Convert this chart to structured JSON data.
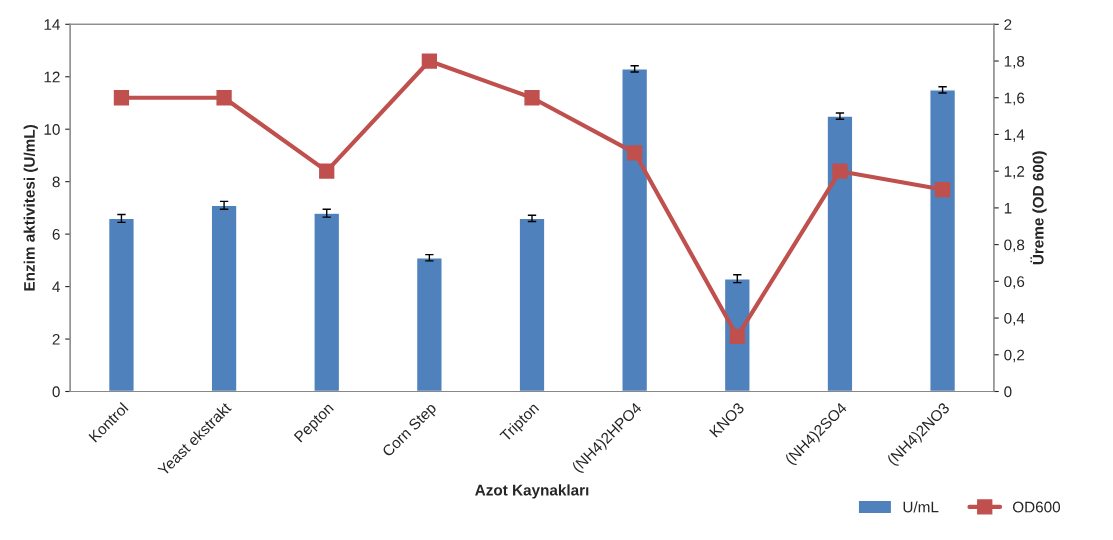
{
  "chart_data": {
    "type": "bar",
    "categories": [
      "Kontrol",
      "Yeast ekstrakt",
      "Pepton",
      "Corn Step",
      "Tripton",
      "(NH4)2HPO4",
      "KNO3",
      "(NH4)2SO4",
      "(NH4)2NO3"
    ],
    "series": [
      {
        "name": "U/mL",
        "color": "#4f81bd",
        "values": [
          6.6,
          7.1,
          6.8,
          5.1,
          6.6,
          12.3,
          4.3,
          10.5,
          11.5
        ],
        "errors": [
          0.15,
          0.15,
          0.15,
          0.12,
          0.12,
          0.12,
          0.15,
          0.12,
          0.12
        ]
      },
      {
        "name": "OD600",
        "type": "line",
        "axis": "y2",
        "color": "#c0504d",
        "marker": "square",
        "values": [
          1.6,
          1.6,
          1.2,
          1.8,
          1.6,
          1.3,
          0.3,
          1.2,
          1.1
        ]
      }
    ],
    "xlabel": "Azot Kaynakları",
    "ylabel": "Enzim aktivitesi (U/mL)",
    "y2label": "Üreme (OD 600)",
    "ylim": [
      0,
      14
    ],
    "yticks": [
      0,
      2,
      4,
      6,
      8,
      10,
      12,
      14
    ],
    "y2lim": [
      0,
      2
    ],
    "y2ticks": [
      0,
      {
        "value": 0.2,
        "label": "0,2"
      },
      {
        "value": 0.4,
        "label": "0,4"
      },
      {
        "value": 0.6,
        "label": "0,6"
      },
      {
        "value": 0.8,
        "label": "0,8"
      },
      1,
      {
        "value": 1.2,
        "label": "1,2"
      },
      {
        "value": 1.4,
        "label": "1,4"
      },
      {
        "value": 1.6,
        "label": "1,6"
      },
      {
        "value": 1.8,
        "label": "1,8"
      },
      2
    ],
    "grid": false,
    "legend": "bottom right"
  }
}
